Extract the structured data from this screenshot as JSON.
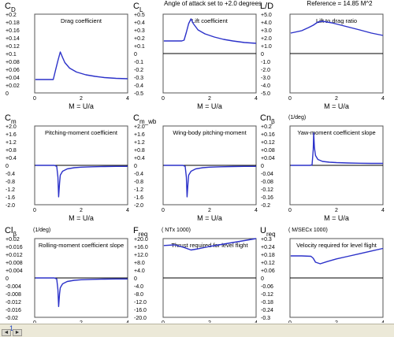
{
  "pager": {
    "page": "1",
    "prev_glyph": "◄",
    "next_glyph": "►"
  },
  "style": {
    "curve_color": "#2b31c9",
    "axis_color": "#000000",
    "text_color": "#000000"
  },
  "chart_data": [
    {
      "type": "line",
      "y_symbol": "C",
      "y_sub": "D",
      "units": "",
      "header": "",
      "title": "Drag coefficient",
      "xlabel": "M = U/a",
      "xticks": [
        0,
        2,
        4
      ],
      "xlim": [
        0,
        4
      ],
      "yticks": [
        "+0.2",
        "+0.18",
        "+0.16",
        "+0.14",
        "+0.12",
        "+0.1",
        "+0.08",
        "+0.06",
        "+0.04",
        "+0.02",
        "0"
      ],
      "ylim": [
        0,
        0.2
      ],
      "x": [
        0.03,
        0.8,
        0.9,
        1.0,
        1.1,
        1.2,
        1.3,
        1.5,
        1.8,
        2.2,
        2.6,
        3.0,
        3.5,
        4.0
      ],
      "y": [
        0.034,
        0.034,
        0.058,
        0.082,
        0.104,
        0.09,
        0.077,
        0.063,
        0.053,
        0.046,
        0.042,
        0.039,
        0.037,
        0.036
      ]
    },
    {
      "type": "line",
      "y_symbol": "C",
      "y_sub": "L",
      "units": "",
      "header": "Angle of attack set to +2.0 degrees",
      "title": "Lift coefficient",
      "xlabel": "M = U/a",
      "xticks": [
        0,
        2,
        4
      ],
      "xlim": [
        0,
        4
      ],
      "yticks": [
        "+0.5",
        "+0.4",
        "+0.3",
        "+0.2",
        "+0.1",
        "0",
        "-0.1",
        "-0.2",
        "-0.3",
        "-0.4",
        "-0.5"
      ],
      "ylim": [
        -0.5,
        0.5
      ],
      "x": [
        0.03,
        0.8,
        0.9,
        1.0,
        1.1,
        1.2,
        1.3,
        1.5,
        1.8,
        2.2,
        2.6,
        3.0,
        3.5,
        4.0
      ],
      "y": [
        0.16,
        0.16,
        0.17,
        0.27,
        0.38,
        0.44,
        0.38,
        0.3,
        0.25,
        0.21,
        0.18,
        0.16,
        0.14,
        0.13
      ]
    },
    {
      "type": "line",
      "y_symbol": "L/D",
      "y_sub": "",
      "units": "",
      "header": "Reference = 14.85 M^2",
      "title": "Lift to drag ratio",
      "xlabel": "M = U/a",
      "xticks": [
        0,
        2,
        4
      ],
      "xlim": [
        0,
        4
      ],
      "yticks": [
        "+5.0",
        "+4.0",
        "+3.0",
        "+2.0",
        "+1.0",
        "0",
        "-1.0",
        "-2.0",
        "-3.0",
        "-4.0",
        "-5.0"
      ],
      "ylim": [
        -5,
        5
      ],
      "x": [
        0.03,
        0.5,
        0.8,
        1.0,
        1.2,
        1.4,
        1.8,
        2.2,
        2.6,
        3.0,
        3.5,
        4.0
      ],
      "y": [
        2.6,
        2.9,
        3.3,
        3.6,
        4.0,
        4.1,
        3.9,
        3.6,
        3.3,
        3.0,
        2.6,
        2.3
      ]
    },
    {
      "type": "line",
      "y_symbol": "C",
      "y_sub": "m",
      "units": "",
      "header": "",
      "title": "Pitching-moment coefficient",
      "xlabel": "M = U/a",
      "xticks": [
        0,
        2,
        4
      ],
      "xlim": [
        0,
        4
      ],
      "yticks": [
        "+2.0",
        "+1.6",
        "+1.2",
        "+0.8",
        "+0.4",
        "0",
        "-0.4",
        "-0.8",
        "-1.2",
        "-1.6",
        "-2.0"
      ],
      "ylim": [
        -2,
        2
      ],
      "x": [
        0.03,
        0.85,
        0.95,
        1.0,
        1.03,
        1.07,
        1.1,
        1.2,
        1.4,
        1.7,
        2.0,
        2.5,
        3.0,
        3.5,
        4.0
      ],
      "y": [
        0,
        0,
        -0.05,
        -0.6,
        -1.6,
        -0.9,
        -0.5,
        -0.3,
        -0.18,
        -0.12,
        -0.09,
        -0.07,
        -0.06,
        -0.05,
        -0.05
      ]
    },
    {
      "type": "line",
      "y_symbol": "C",
      "y_sub": "m_wb",
      "units": "",
      "header": "",
      "title": "Wing-body pitching-moment",
      "xlabel": "M = U/a",
      "xticks": [
        0,
        2,
        4
      ],
      "xlim": [
        0,
        4
      ],
      "yticks": [
        "+2.0",
        "+1.6",
        "+1.2",
        "+0.8",
        "+0.4",
        "0",
        "-0.4",
        "-0.8",
        "-1.2",
        "-1.6",
        "-2.0"
      ],
      "ylim": [
        -2,
        2
      ],
      "x": [
        0.03,
        0.85,
        0.95,
        1.0,
        1.03,
        1.07,
        1.1,
        1.2,
        1.4,
        1.7,
        2.0,
        2.5,
        3.0,
        3.5,
        4.0
      ],
      "y": [
        0,
        0,
        -0.05,
        -0.6,
        -1.6,
        -0.9,
        -0.5,
        -0.3,
        -0.18,
        -0.12,
        -0.09,
        -0.07,
        -0.06,
        -0.05,
        -0.05
      ]
    },
    {
      "type": "line",
      "y_symbol": "Cn",
      "y_sub": "β",
      "units": "(1/deg)",
      "header": "",
      "title": "Yaw-moment coefficient slope",
      "xlabel": "M = U/a",
      "xticks": [
        0,
        2,
        4
      ],
      "xlim": [
        0,
        4
      ],
      "yticks": [
        "+0.2",
        "+0.16",
        "+0.12",
        "+0.08",
        "+0.04",
        "0",
        "-0.04",
        "-0.08",
        "-0.12",
        "-0.16",
        "-0.2"
      ],
      "ylim": [
        -0.2,
        0.2
      ],
      "x": [
        0.03,
        0.85,
        0.95,
        1.0,
        1.02,
        1.05,
        1.1,
        1.2,
        1.4,
        1.7,
        2.0,
        2.5,
        3.0,
        3.5,
        4.0
      ],
      "y": [
        0,
        0,
        0.002,
        0.08,
        0.165,
        0.09,
        0.05,
        0.03,
        0.02,
        0.016,
        0.014,
        0.012,
        0.011,
        0.01,
        0.01
      ]
    },
    {
      "type": "line",
      "y_symbol": "Cl",
      "y_sub": "β",
      "units": "(1/deg)",
      "header": "",
      "title": "Rolling-moment coefficient slope",
      "xlabel": "M = U/a",
      "xticks": [
        0,
        2,
        4
      ],
      "xlim": [
        0,
        4
      ],
      "yticks": [
        "+0.02",
        "+0.016",
        "+0.012",
        "+0.008",
        "+0.004",
        "0",
        "-0.004",
        "-0.008",
        "-0.012",
        "-0.016",
        "-0.02"
      ],
      "ylim": [
        -0.02,
        0.02
      ],
      "x": [
        0.03,
        0.85,
        0.95,
        1.0,
        1.03,
        1.07,
        1.1,
        1.2,
        1.4,
        1.7,
        2.0,
        2.5,
        3.0,
        3.5,
        4.0
      ],
      "y": [
        0,
        0,
        -0.0005,
        -0.006,
        -0.0145,
        -0.008,
        -0.005,
        -0.003,
        -0.0018,
        -0.0012,
        -0.0009,
        -0.0007,
        -0.0006,
        -0.0005,
        -0.0005
      ]
    },
    {
      "type": "line",
      "y_symbol": "F",
      "y_sub": "req",
      "units": "( NTx 1000)",
      "header": "",
      "title": "Thrust required for level flight",
      "xlabel": "M = U/a",
      "xticks": [
        0,
        2,
        4
      ],
      "xlim": [
        0,
        4
      ],
      "yticks": [
        "+20.0",
        "+16.0",
        "+12.0",
        "+8.0",
        "+4.0",
        "0",
        "-4.0",
        "-8.0",
        "-12.0",
        "-16.0",
        "-20.0"
      ],
      "ylim": [
        -20,
        20
      ],
      "x": [
        0.03,
        0.5,
        0.9,
        1.2,
        1.5,
        2.0,
        2.5,
        3.0,
        3.5,
        4.0
      ],
      "y": [
        16.5,
        16.8,
        15.5,
        14.2,
        14.8,
        16.0,
        17.0,
        18.0,
        19.0,
        20.0
      ]
    },
    {
      "type": "line",
      "y_symbol": "U",
      "y_sub": "req",
      "units": "( M/SECx 1000)",
      "header": "",
      "title": "Velocity required for level flight",
      "xlabel": "M = U/a",
      "xticks": [
        0,
        2,
        4
      ],
      "xlim": [
        0,
        4
      ],
      "yticks": [
        "+0.3",
        "+0.24",
        "+0.18",
        "+0.12",
        "+0.06",
        "0",
        "-0.06",
        "-0.12",
        "-0.18",
        "-0.24",
        "-0.3"
      ],
      "ylim": [
        -0.3,
        0.3
      ],
      "x": [
        0.03,
        0.5,
        0.9,
        1.0,
        1.1,
        1.3,
        1.6,
        2.0,
        2.5,
        3.0,
        3.5,
        4.0
      ],
      "y": [
        0.168,
        0.168,
        0.165,
        0.15,
        0.12,
        0.108,
        0.125,
        0.145,
        0.165,
        0.185,
        0.205,
        0.225
      ]
    }
  ]
}
